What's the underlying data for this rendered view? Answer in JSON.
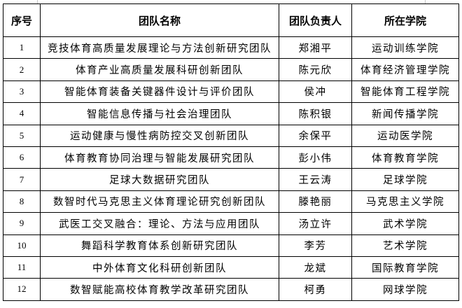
{
  "table": {
    "headers": [
      "序号",
      "团队名称",
      "团队负责人",
      "所在学院"
    ],
    "rows": [
      [
        "1",
        "竞技体育高质量发展理论与方法创新研究团队",
        "郑湘平",
        "运动训练学院"
      ],
      [
        "2",
        "体育产业高质量发展科研创新团队",
        "陈元欣",
        "体育经济管理学院"
      ],
      [
        "3",
        "智能体育装备关键器件设计与评价团队",
        "侯冲",
        "智能体育工程学院"
      ],
      [
        "4",
        "智能信息传播与社会治理团队",
        "陈积银",
        "新闻传播学院"
      ],
      [
        "5",
        "运动健康与慢性病防控交叉创新团队",
        "余保平",
        "运动医学院"
      ],
      [
        "6",
        "体育教育协同治理与智能发展研究团队",
        "彭小伟",
        "体育教育学院"
      ],
      [
        "7",
        "足球大数据研究团队",
        "王云涛",
        "足球学院"
      ],
      [
        "8",
        "数智时代马克思主义体育理论研究创新团队",
        "滕艳丽",
        "马克思主义学院"
      ],
      [
        "9",
        "武医工交叉融合：理论、方法与应用团队",
        "汤立许",
        "武术学院"
      ],
      [
        "10",
        "舞蹈科学教育体系创新研究团队",
        "李芳",
        "艺术学院"
      ],
      [
        "11",
        "中外体育文化科研创新团队",
        "龙斌",
        "国际教育学院"
      ],
      [
        "12",
        "数智赋能高校体育教学改革研究团队",
        "柯勇",
        "网球学院"
      ]
    ]
  }
}
